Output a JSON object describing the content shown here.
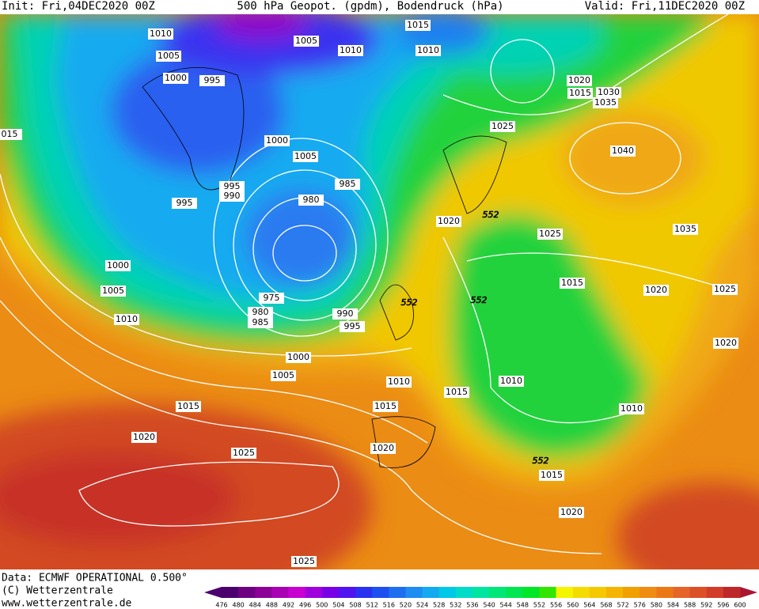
{
  "header": {
    "init": "Init: Fri,04DEC2020 00Z",
    "title": "500 hPa Geopot. (gpdm), Bodendruck (hPa)",
    "valid": "Valid: Fri,11DEC2020 00Z"
  },
  "isobar_labels": [
    "1010",
    "1005",
    "1010",
    "1015",
    "1010",
    "1005",
    "1000",
    "995",
    "1020",
    "1030",
    "1035",
    "1025",
    "015",
    "1000",
    "1005",
    "1040",
    "995",
    "990",
    "985",
    "980",
    "995",
    "1020",
    "1025",
    "1035",
    "1000",
    "1015",
    "1020",
    "1025",
    "1005",
    "975",
    "980",
    "985",
    "990",
    "1010",
    "995",
    "1020",
    "1000",
    "1005",
    "1010",
    "1015",
    "1010",
    "1010",
    "1015",
    "1015",
    "1020",
    "1025",
    "1020",
    "1015",
    "1020",
    "1025",
    "1015"
  ],
  "height_labels": [
    "552",
    "552",
    "552",
    "552"
  ],
  "footer": {
    "data": "Data: ECMWF OPERATIONAL 0.500°",
    "copyright": "(C) Wetterzentrale",
    "url": "www.wetterzentrale.de"
  },
  "colorbar": {
    "labels": [
      476,
      480,
      484,
      488,
      492,
      496,
      500,
      504,
      508,
      512,
      516,
      520,
      524,
      528,
      532,
      536,
      540,
      544,
      548,
      552,
      556,
      560,
      564,
      568,
      572,
      576,
      580,
      584,
      588,
      592,
      596,
      600
    ],
    "colors": [
      "#4b006e",
      "#6e0082",
      "#8c0096",
      "#aa00b4",
      "#c800d2",
      "#a000dc",
      "#7800e6",
      "#5014f0",
      "#2832f0",
      "#1e50f0",
      "#1e6ef0",
      "#1e8cf0",
      "#14aaf0",
      "#00c8e6",
      "#00dcc8",
      "#00e6a0",
      "#00e678",
      "#00e650",
      "#00e628",
      "#32e600",
      "#f5f500",
      "#f5dc00",
      "#f5c800",
      "#f5b400",
      "#f0a000",
      "#f08c14",
      "#eb7814",
      "#e66428",
      "#dc5028",
      "#d23c28",
      "#be2828",
      "#aa1432"
    ]
  }
}
